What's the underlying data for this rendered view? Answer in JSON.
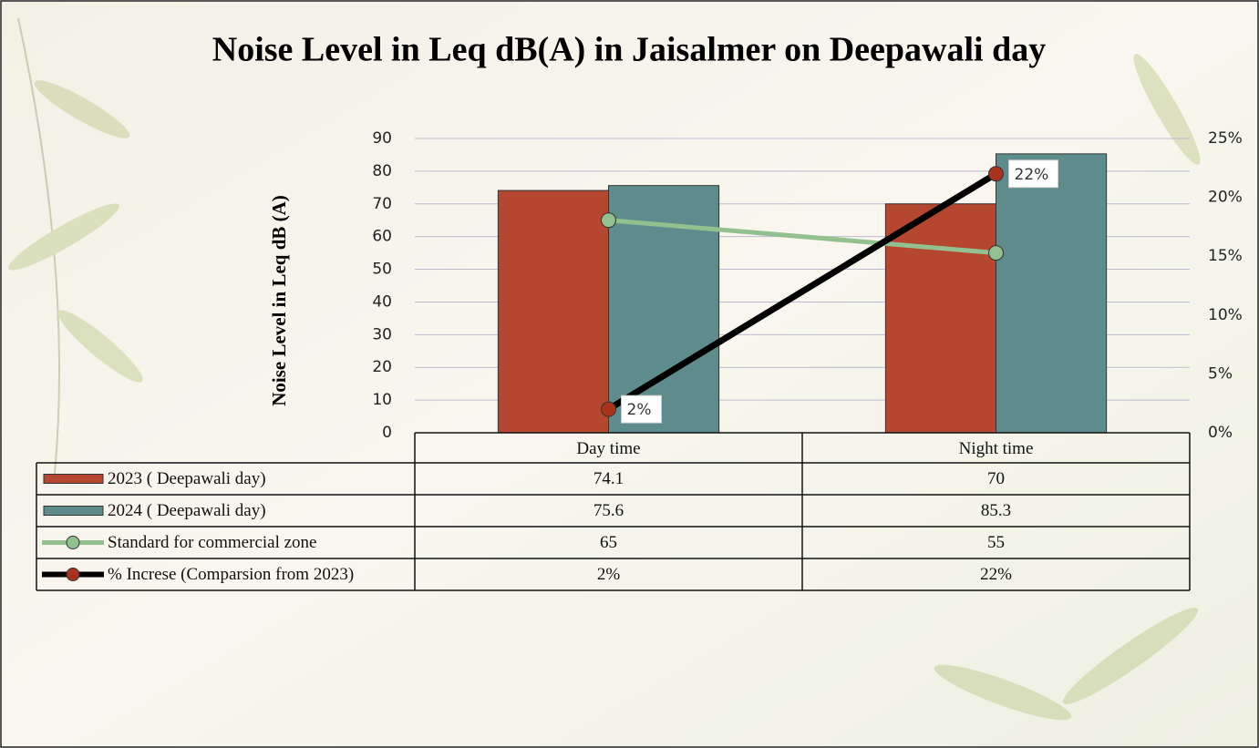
{
  "chart_data": {
    "type": "bar",
    "title": "Noise Level in Leq dB(A) in Jaisalmer on Deepawali day",
    "y_label": "Noise Level in Leq dB (A)",
    "categories": [
      "Day time",
      "Night time"
    ],
    "series": [
      {
        "name": "2023 ( Deepawali day)",
        "type": "bar",
        "color": "#b5462f",
        "values": [
          74.1,
          70
        ]
      },
      {
        "name": "2024 ( Deepawali day)",
        "type": "bar",
        "color": "#5e8c8c",
        "values": [
          75.6,
          85.3
        ]
      },
      {
        "name": "Standard for commercial zone",
        "type": "line",
        "color": "#92c08e",
        "values": [
          65,
          55
        ]
      },
      {
        "name": "% Increse (Comparsion from 2023)",
        "type": "line",
        "axis": "y2",
        "color": "#000000",
        "marker_color": "#a8321c",
        "values": [
          2,
          22
        ],
        "value_labels": [
          "2%",
          "22%"
        ]
      }
    ],
    "ylim": [
      0,
      90
    ],
    "yticks": [
      0,
      10,
      20,
      30,
      40,
      50,
      60,
      70,
      80,
      90
    ],
    "y2lim": [
      0,
      25
    ],
    "y2ticks": [
      {
        "value": 0,
        "label": "0%"
      },
      {
        "value": 5,
        "label": "5%"
      },
      {
        "value": 10,
        "label": "10%"
      },
      {
        "value": 15,
        "label": "15%"
      },
      {
        "value": 20,
        "label": "20%"
      },
      {
        "value": 25,
        "label": "25%"
      }
    ],
    "grid": true
  }
}
